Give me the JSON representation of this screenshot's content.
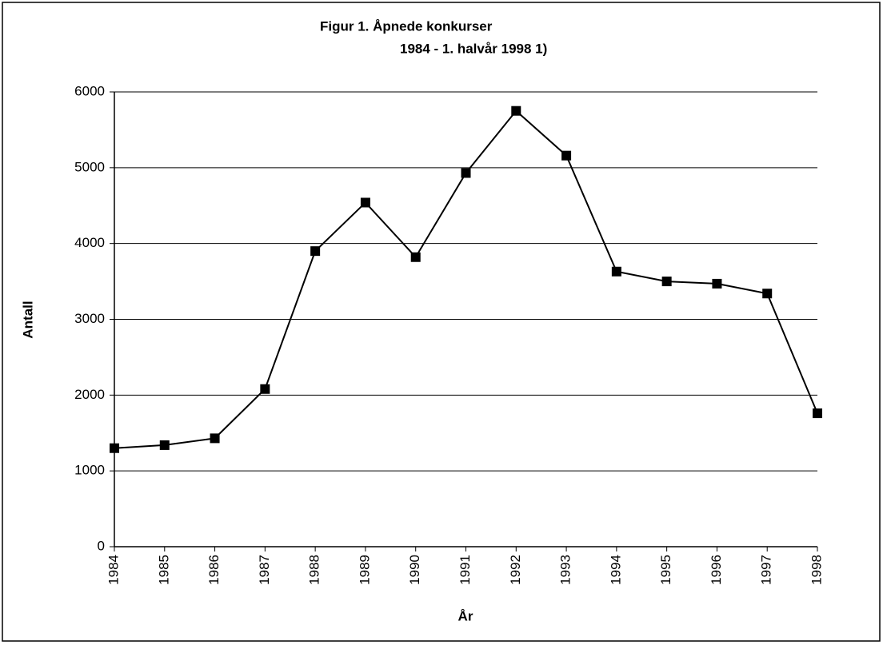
{
  "chart_data": {
    "type": "line",
    "title": "Figur 1. Åpnede konkurser",
    "subtitle": "1984 - 1. halvår 1998 1)",
    "y_label": "Antall",
    "x_label": "År",
    "categories": [
      "1984",
      "1985",
      "1986",
      "1987",
      "1988",
      "1989",
      "1990",
      "1991",
      "1992",
      "1993",
      "1994",
      "1995",
      "1996",
      "1997",
      "1998"
    ],
    "series": [
      {
        "name": "Åpnede konkurser",
        "color": "#000000",
        "values": [
          1300,
          1340,
          1430,
          2080,
          3900,
          4540,
          3820,
          4930,
          5750,
          5160,
          3630,
          3500,
          3470,
          3340,
          1760
        ]
      }
    ],
    "ylim": [
      0,
      6000
    ],
    "yticks": [
      0,
      1000,
      2000,
      3000,
      4000,
      5000,
      6000
    ],
    "grid": true,
    "legend": false
  }
}
